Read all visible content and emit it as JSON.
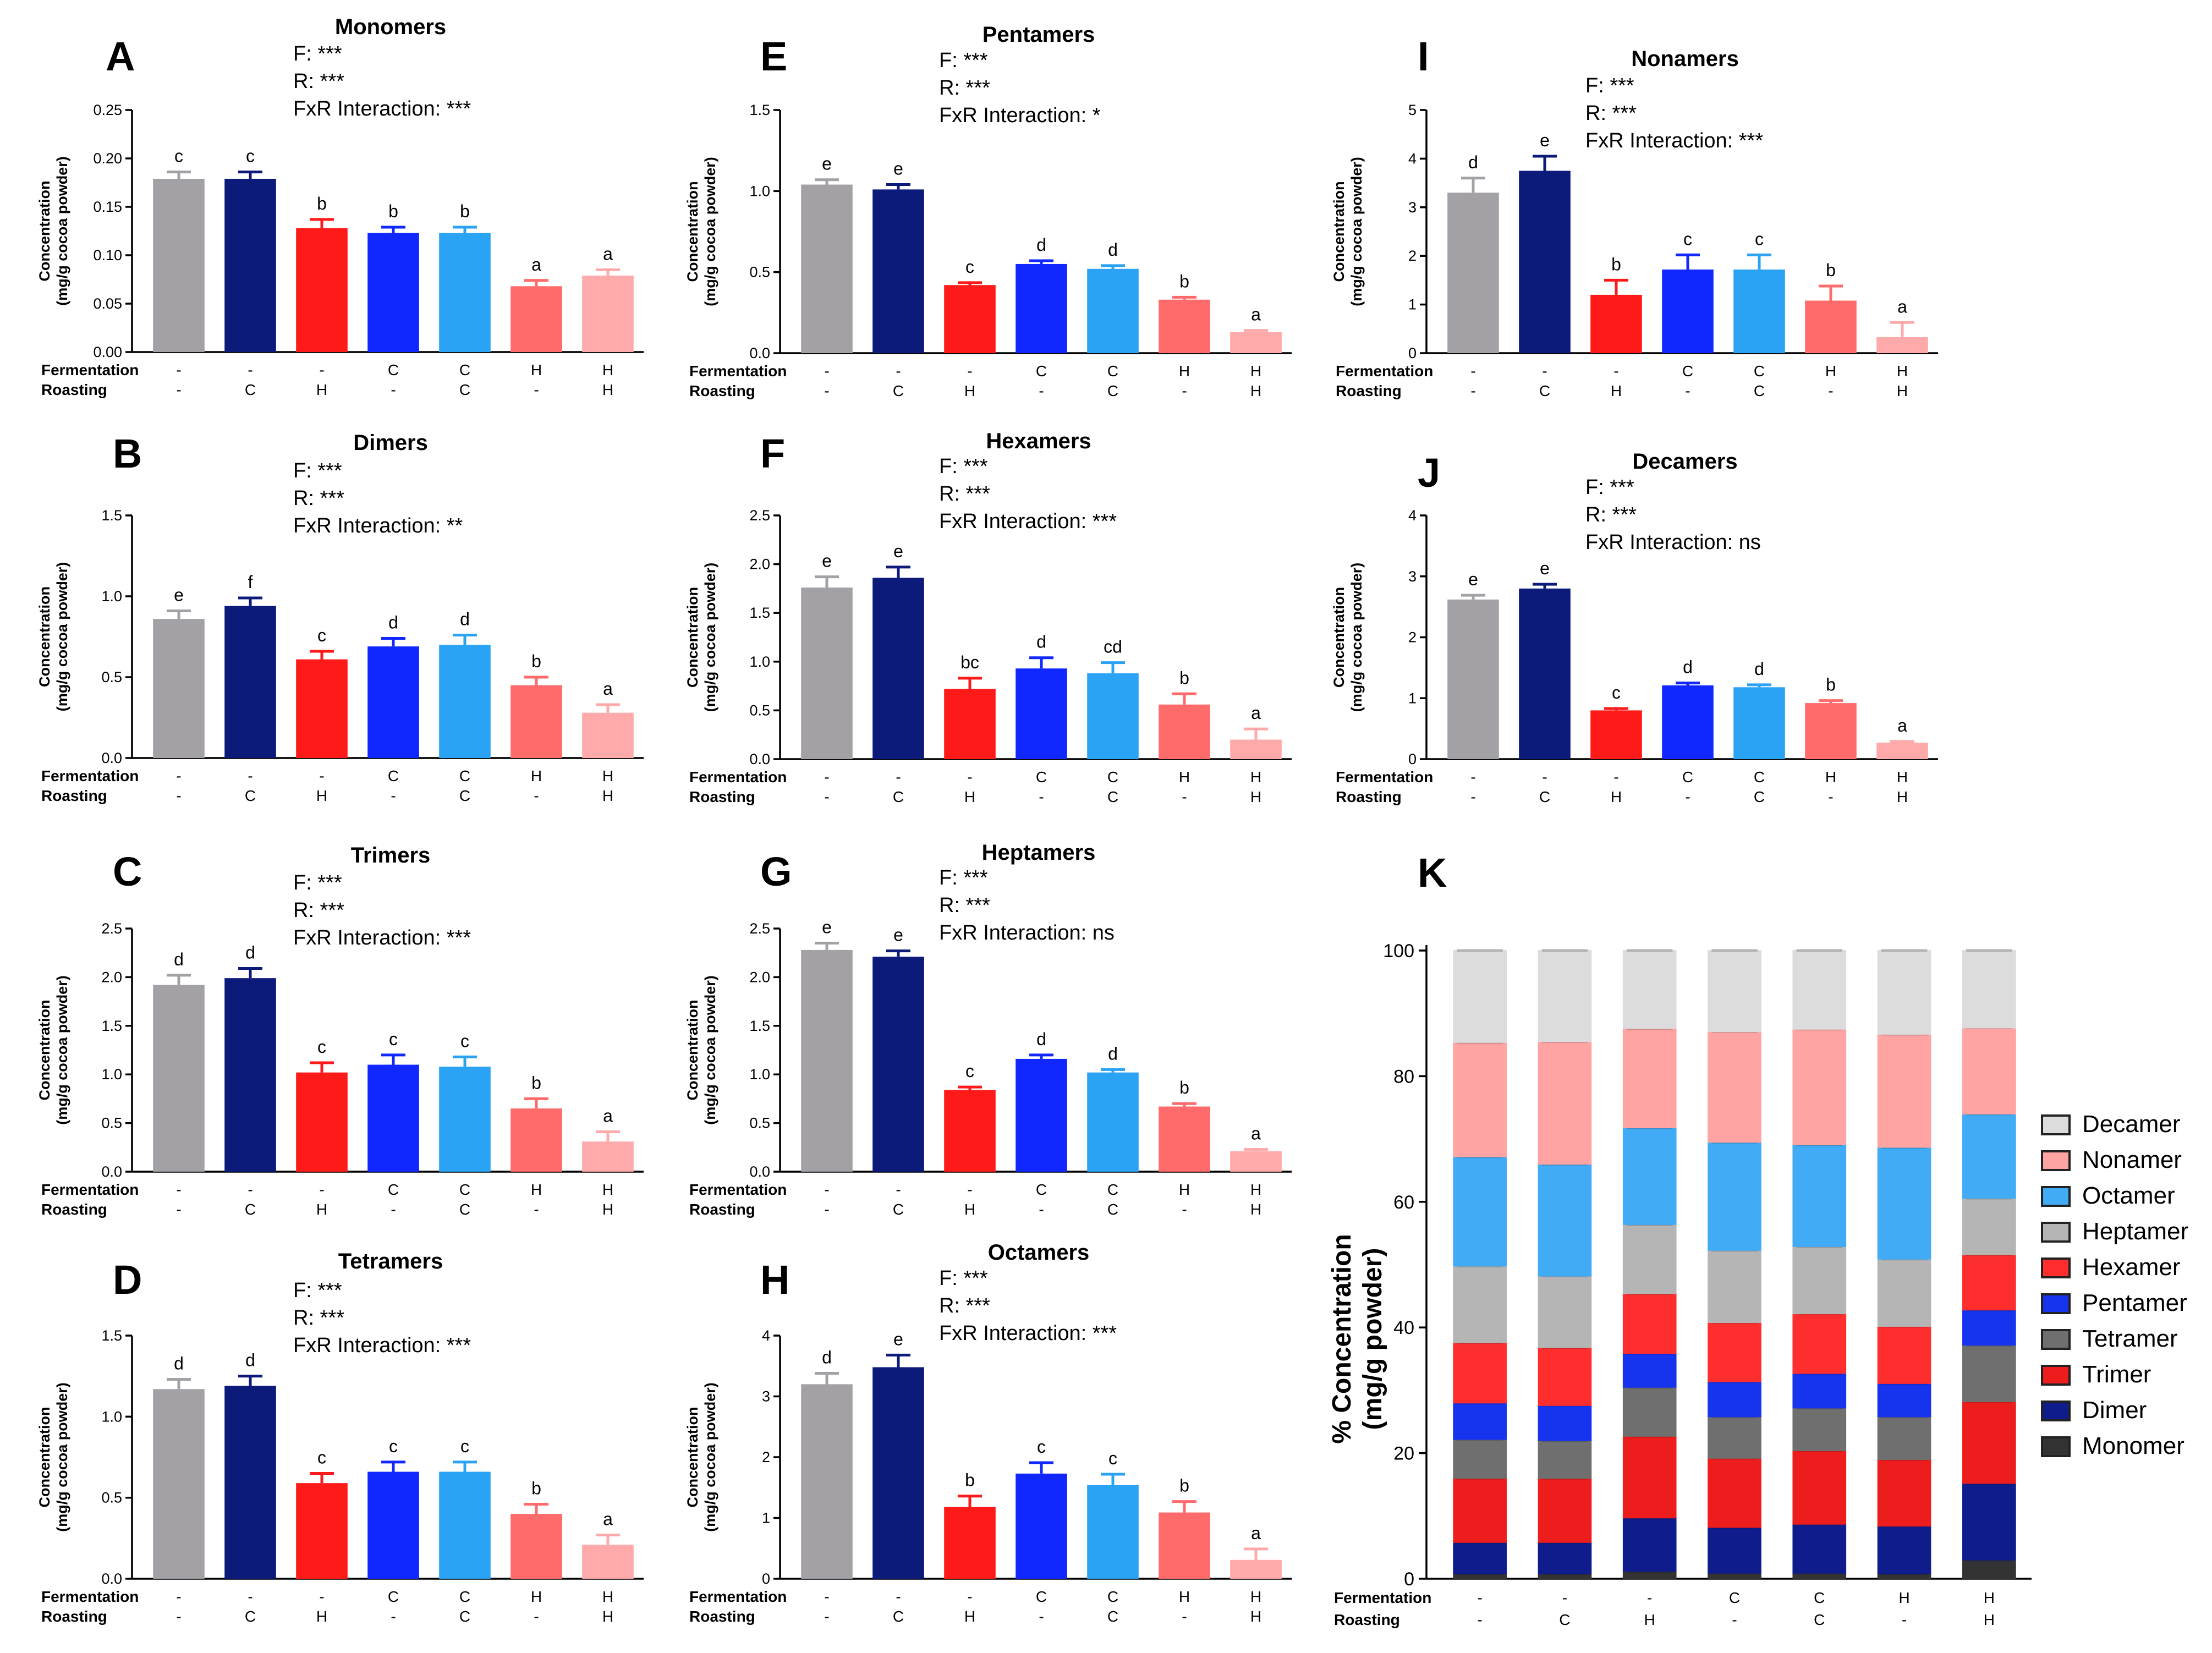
{
  "conditions": {
    "row_labels": [
      "Fermentation",
      "Roasting"
    ],
    "fermentation": [
      "-",
      "-",
      "-",
      "C",
      "C",
      "H",
      "H"
    ],
    "roasting": [
      "-",
      "C",
      "H",
      "-",
      "C",
      "-",
      "H"
    ]
  },
  "colors": [
    "#a3a1a6",
    "#0c1a7a",
    "#ff1a1a",
    "#1028ff",
    "#2ba3f5",
    "#ff6a6a",
    "#ffaaaa"
  ],
  "y_axis_label": [
    "Concentration",
    "(mg/g cocoa powder)"
  ],
  "chart_data": [
    {
      "type": "bar",
      "panel": "A",
      "title": "Monomers",
      "stats": [
        "F: ***",
        "R: ***",
        "FxR Interaction: ***"
      ],
      "ylim": [
        0,
        0.25
      ],
      "ticks": [
        "0.00",
        "0.05",
        "0.10",
        "0.15",
        "0.20",
        "0.25"
      ],
      "tick_values": [
        0,
        0.05,
        0.1,
        0.15,
        0.2,
        0.25
      ],
      "values": [
        0.179,
        0.179,
        0.128,
        0.123,
        0.123,
        0.068,
        0.079
      ],
      "errors": [
        0.007,
        0.007,
        0.009,
        0.006,
        0.006,
        0.006,
        0.006
      ],
      "letters": [
        "c",
        "c",
        "b",
        "b",
        "b",
        "a",
        "a"
      ]
    },
    {
      "type": "bar",
      "panel": "B",
      "title": "Dimers",
      "stats": [
        "F: ***",
        "R: ***",
        "FxR Interaction: **"
      ],
      "ylim": [
        0,
        1.5
      ],
      "ticks": [
        "0.0",
        "0.5",
        "1.0",
        "1.5"
      ],
      "tick_values": [
        0,
        0.5,
        1.0,
        1.5
      ],
      "values": [
        0.86,
        0.94,
        0.61,
        0.69,
        0.7,
        0.45,
        0.28
      ],
      "errors": [
        0.05,
        0.05,
        0.05,
        0.05,
        0.06,
        0.05,
        0.05
      ],
      "letters": [
        "e",
        "f",
        "c",
        "d",
        "d",
        "b",
        "a"
      ]
    },
    {
      "type": "bar",
      "panel": "C",
      "title": "Trimers",
      "stats": [
        "F: ***",
        "R: ***",
        "FxR Interaction: ***"
      ],
      "ylim": [
        0,
        2.5
      ],
      "ticks": [
        "0.0",
        "0.5",
        "1.0",
        "1.5",
        "2.0",
        "2.5"
      ],
      "tick_values": [
        0,
        0.5,
        1.0,
        1.5,
        2.0,
        2.5
      ],
      "values": [
        1.92,
        1.99,
        1.02,
        1.1,
        1.08,
        0.65,
        0.31
      ],
      "errors": [
        0.1,
        0.1,
        0.1,
        0.1,
        0.1,
        0.1,
        0.1
      ],
      "letters": [
        "d",
        "d",
        "c",
        "c",
        "c",
        "b",
        "a"
      ]
    },
    {
      "type": "bar",
      "panel": "D",
      "title": "Tetramers",
      "stats": [
        "F: ***",
        "R: ***",
        "FxR Interaction: ***"
      ],
      "ylim": [
        0,
        1.5
      ],
      "ticks": [
        "0.0",
        "0.5",
        "1.0",
        "1.5"
      ],
      "tick_values": [
        0,
        0.5,
        1.0,
        1.5
      ],
      "values": [
        1.17,
        1.19,
        0.59,
        0.66,
        0.66,
        0.4,
        0.21
      ],
      "errors": [
        0.06,
        0.06,
        0.06,
        0.06,
        0.06,
        0.06,
        0.06
      ],
      "letters": [
        "d",
        "d",
        "c",
        "c",
        "c",
        "b",
        "a"
      ]
    },
    {
      "type": "bar",
      "panel": "E",
      "title": "Pentamers",
      "stats": [
        "F: ***",
        "R: ***",
        "FxR Interaction: *"
      ],
      "ylim": [
        0,
        1.5
      ],
      "ticks": [
        "0.0",
        "0.5",
        "1.0",
        "1.5"
      ],
      "tick_values": [
        0,
        0.5,
        1.0,
        1.5
      ],
      "values": [
        1.04,
        1.01,
        0.42,
        0.55,
        0.52,
        0.33,
        0.13
      ],
      "errors": [
        0.03,
        0.03,
        0.015,
        0.02,
        0.02,
        0.015,
        0.01
      ],
      "letters": [
        "e",
        "e",
        "c",
        "d",
        "d",
        "b",
        "a"
      ]
    },
    {
      "type": "bar",
      "panel": "F",
      "title": "Hexamers",
      "stats": [
        "F: ***",
        "R: ***",
        "FxR Interaction: ***"
      ],
      "ylim": [
        0,
        2.5
      ],
      "ticks": [
        "0.0",
        "0.5",
        "1.0",
        "1.5",
        "2.0",
        "2.5"
      ],
      "tick_values": [
        0,
        0.5,
        1.0,
        1.5,
        2.0,
        2.5
      ],
      "values": [
        1.76,
        1.86,
        0.72,
        0.93,
        0.88,
        0.56,
        0.2
      ],
      "errors": [
        0.11,
        0.11,
        0.11,
        0.11,
        0.11,
        0.11,
        0.11
      ],
      "letters": [
        "e",
        "e",
        "bc",
        "d",
        "cd",
        "b",
        "a"
      ]
    },
    {
      "type": "bar",
      "panel": "G",
      "title": "Heptamers",
      "stats": [
        "F: ***",
        "R: ***",
        "FxR Interaction: ns"
      ],
      "ylim": [
        0,
        2.5
      ],
      "ticks": [
        "0.0",
        "0.5",
        "1.0",
        "1.5",
        "2.0",
        "2.5"
      ],
      "tick_values": [
        0,
        0.5,
        1.0,
        1.5,
        2.0,
        2.5
      ],
      "values": [
        2.28,
        2.21,
        0.84,
        1.16,
        1.02,
        0.67,
        0.21
      ],
      "errors": [
        0.07,
        0.06,
        0.03,
        0.04,
        0.03,
        0.03,
        0.02
      ],
      "letters": [
        "e",
        "e",
        "c",
        "d",
        "d",
        "b",
        "a"
      ]
    },
    {
      "type": "bar",
      "panel": "H",
      "title": "Octamers",
      "stats": [
        "F: ***",
        "R: ***",
        "FxR Interaction: ***"
      ],
      "ylim": [
        0,
        4
      ],
      "ticks": [
        "0",
        "1",
        "2",
        "3",
        "4"
      ],
      "tick_values": [
        0,
        1,
        2,
        3,
        4
      ],
      "values": [
        3.2,
        3.48,
        1.18,
        1.73,
        1.54,
        1.09,
        0.31
      ],
      "errors": [
        0.18,
        0.2,
        0.18,
        0.18,
        0.18,
        0.18,
        0.18
      ],
      "letters": [
        "d",
        "e",
        "b",
        "c",
        "c",
        "b",
        "a"
      ]
    },
    {
      "type": "bar",
      "panel": "I",
      "title": "Nonamers",
      "stats": [
        "F: ***",
        "R: ***",
        "FxR Interaction: ***"
      ],
      "ylim": [
        0,
        5
      ],
      "ticks": [
        "0",
        "1",
        "2",
        "3",
        "4",
        "5"
      ],
      "tick_values": [
        0,
        1,
        2,
        3,
        4,
        5
      ],
      "values": [
        3.3,
        3.75,
        1.2,
        1.72,
        1.72,
        1.08,
        0.33
      ],
      "errors": [
        0.3,
        0.3,
        0.3,
        0.3,
        0.3,
        0.3,
        0.3
      ],
      "letters": [
        "d",
        "e",
        "b",
        "c",
        "c",
        "b",
        "a"
      ]
    },
    {
      "type": "bar",
      "panel": "J",
      "title": "Decamers",
      "stats": [
        "F: ***",
        "R: ***",
        "FxR Interaction: ns"
      ],
      "ylim": [
        0,
        4
      ],
      "ticks": [
        "0",
        "1",
        "2",
        "3",
        "4"
      ],
      "tick_values": [
        0,
        1,
        2,
        3,
        4
      ],
      "values": [
        2.62,
        2.8,
        0.8,
        1.21,
        1.18,
        0.92,
        0.27
      ],
      "errors": [
        0.07,
        0.07,
        0.03,
        0.04,
        0.04,
        0.04,
        0.02
      ],
      "letters": [
        "e",
        "e",
        "c",
        "d",
        "d",
        "b",
        "a"
      ]
    },
    {
      "type": "stacked-bar",
      "panel": "K",
      "ylabel": [
        "% Concentration",
        "(mg/g powder)"
      ],
      "ylim": [
        0,
        100
      ],
      "ticks": [
        "0",
        "20",
        "40",
        "60",
        "80",
        "100"
      ],
      "tick_values": [
        0,
        20,
        40,
        60,
        80,
        100
      ],
      "legend": [
        "Decamer",
        "Nonamer",
        "Octamer",
        "Heptamer",
        "Hexamer",
        "Pentamer",
        "Tetramer",
        "Trimer",
        "Dimer",
        "Monomer"
      ],
      "segment_colors": {
        "Decamer": "#dcdcdc",
        "Nonamer": "#ffa3a3",
        "Octamer": "#42abf5",
        "Heptamer": "#b5b5b5",
        "Hexamer": "#ff2e2e",
        "Pentamer": "#1633ee",
        "Tetramer": "#6f6f6f",
        "Trimer": "#ee1d1d",
        "Dimer": "#0f1d8c",
        "Monomer": "#333333"
      },
      "series": [
        {
          "name": "Monomer",
          "values": [
            0.8,
            0.8,
            1.2,
            0.9,
            0.9,
            0.8,
            3.0
          ]
        },
        {
          "name": "Dimer",
          "values": [
            5.0,
            5.0,
            8.5,
            7.3,
            7.8,
            7.6,
            12.2
          ]
        },
        {
          "name": "Trimer",
          "values": [
            10.2,
            10.2,
            13.0,
            11.0,
            11.7,
            10.6,
            13.0
          ]
        },
        {
          "name": "Tetramer",
          "values": [
            6.2,
            6.0,
            7.8,
            6.6,
            6.8,
            6.8,
            9.0
          ]
        },
        {
          "name": "Pentamer",
          "values": [
            5.8,
            5.6,
            5.4,
            5.6,
            5.5,
            5.3,
            5.6
          ]
        },
        {
          "name": "Hexamer",
          "values": [
            9.6,
            9.2,
            9.5,
            9.4,
            9.5,
            9.1,
            8.8
          ]
        },
        {
          "name": "Heptamer",
          "values": [
            12.2,
            11.4,
            11.0,
            11.5,
            10.7,
            10.7,
            9.0
          ]
        },
        {
          "name": "Octamer",
          "values": [
            17.4,
            17.8,
            15.4,
            17.2,
            16.2,
            17.8,
            13.4
          ]
        },
        {
          "name": "Nonamer",
          "values": [
            18.2,
            19.5,
            15.8,
            17.6,
            18.4,
            18.0,
            13.7
          ]
        },
        {
          "name": "Decamer",
          "values": [
            14.6,
            14.5,
            12.4,
            12.9,
            12.5,
            13.3,
            12.3
          ]
        }
      ],
      "errors": [
        0.3,
        0.3,
        0.8,
        0.5,
        0.6,
        0.7,
        0.6
      ]
    }
  ]
}
